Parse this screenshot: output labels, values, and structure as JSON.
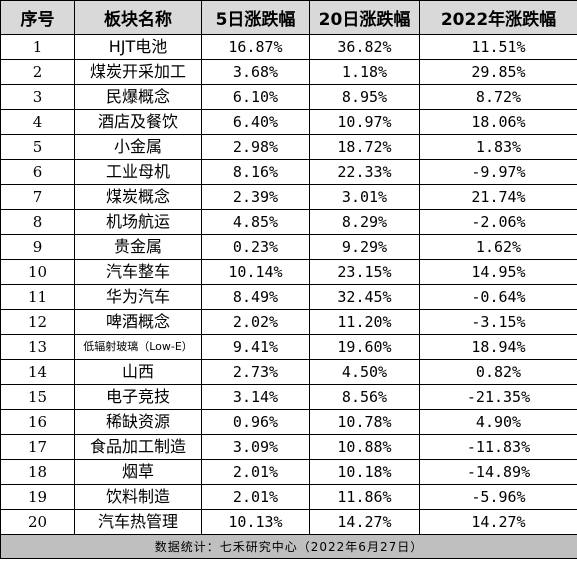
{
  "header": {
    "index": "序号",
    "sector": "板块名称",
    "change_5d": "5日涨跌幅",
    "change_20d": "20日涨跌幅",
    "change_2022": "2022年涨跌幅"
  },
  "rows": [
    {
      "index": "1",
      "sector": "HJT电池",
      "change_5d": "16.87%",
      "change_20d": "36.82%",
      "change_2022": "11.51%"
    },
    {
      "index": "2",
      "sector": "煤炭开采加工",
      "change_5d": "3.68%",
      "change_20d": "1.18%",
      "change_2022": "29.85%"
    },
    {
      "index": "3",
      "sector": "民爆概念",
      "change_5d": "6.10%",
      "change_20d": "8.95%",
      "change_2022": "8.72%"
    },
    {
      "index": "4",
      "sector": "酒店及餐饮",
      "change_5d": "6.40%",
      "change_20d": "10.97%",
      "change_2022": "18.06%"
    },
    {
      "index": "5",
      "sector": "小金属",
      "change_5d": "2.98%",
      "change_20d": "18.72%",
      "change_2022": "1.83%"
    },
    {
      "index": "6",
      "sector": "工业母机",
      "change_5d": "8.16%",
      "change_20d": "22.33%",
      "change_2022": "-9.97%"
    },
    {
      "index": "7",
      "sector": "煤炭概念",
      "change_5d": "2.39%",
      "change_20d": "3.01%",
      "change_2022": "21.74%"
    },
    {
      "index": "8",
      "sector": "机场航运",
      "change_5d": "4.85%",
      "change_20d": "8.29%",
      "change_2022": "-2.06%"
    },
    {
      "index": "9",
      "sector": "贵金属",
      "change_5d": "0.23%",
      "change_20d": "9.29%",
      "change_2022": "1.62%"
    },
    {
      "index": "10",
      "sector": "汽车整车",
      "change_5d": "10.14%",
      "change_20d": "23.15%",
      "change_2022": "14.95%"
    },
    {
      "index": "11",
      "sector": "华为汽车",
      "change_5d": "8.49%",
      "change_20d": "32.45%",
      "change_2022": "-0.64%"
    },
    {
      "index": "12",
      "sector": "啤酒概念",
      "change_5d": "2.02%",
      "change_20d": "11.20%",
      "change_2022": "-3.15%"
    },
    {
      "index": "13",
      "sector": "低辐射玻璃（Low-E）",
      "change_5d": "9.41%",
      "change_20d": "19.60%",
      "change_2022": "18.94%"
    },
    {
      "index": "14",
      "sector": "山西",
      "change_5d": "2.73%",
      "change_20d": "4.50%",
      "change_2022": "0.82%"
    },
    {
      "index": "15",
      "sector": "电子竞技",
      "change_5d": "3.14%",
      "change_20d": "8.56%",
      "change_2022": "-21.35%"
    },
    {
      "index": "16",
      "sector": "稀缺资源",
      "change_5d": "0.96%",
      "change_20d": "10.78%",
      "change_2022": "4.90%"
    },
    {
      "index": "17",
      "sector": "食品加工制造",
      "change_5d": "3.09%",
      "change_20d": "10.88%",
      "change_2022": "-11.83%"
    },
    {
      "index": "18",
      "sector": "烟草",
      "change_5d": "2.01%",
      "change_20d": "10.18%",
      "change_2022": "-14.89%"
    },
    {
      "index": "19",
      "sector": "饮料制造",
      "change_5d": "2.01%",
      "change_20d": "11.86%",
      "change_2022": "-5.96%"
    },
    {
      "index": "20",
      "sector": "汽车热管理",
      "change_5d": "10.13%",
      "change_20d": "14.27%",
      "change_2022": "14.27%"
    }
  ],
  "footer": {
    "source": "数据统计：七禾研究中心（2022年6月27日）"
  },
  "colors": {
    "header_bg": "#d9d9d9",
    "footer_bg": "#bfbfbf",
    "border": "#000000"
  }
}
